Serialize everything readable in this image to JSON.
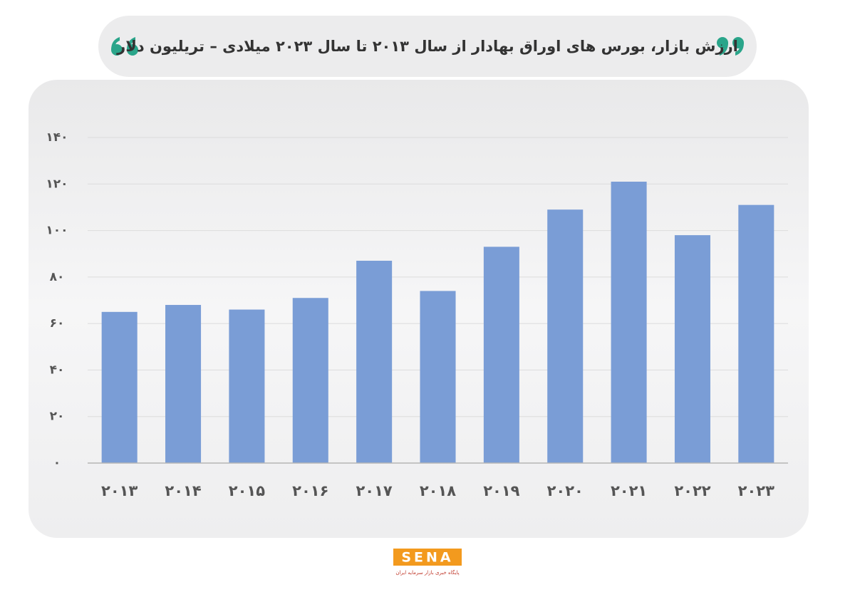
{
  "chart_data": {
    "type": "bar",
    "title": "ارزش بازار، بورس های اوراق بهادار از سال ۲۰۱۳ تا سال ۲۰۲۳ میلادی – تریلیون دلار",
    "categories": [
      "۲۰۱۳",
      "۲۰۱۴",
      "۲۰۱۵",
      "۲۰۱۶",
      "۲۰۱۷",
      "۲۰۱۸",
      "۲۰۱۹",
      "۲۰۲۰",
      "۲۰۲۱",
      "۲۰۲۲",
      "۲۰۲۳"
    ],
    "values": [
      65,
      68,
      66,
      71,
      87,
      74,
      93,
      109,
      121,
      98,
      111
    ],
    "color": "#7a9dd6",
    "ylim": [
      0,
      140
    ],
    "yticks": [
      {
        "value": 0,
        "label": "۰"
      },
      {
        "value": 20,
        "label": "۲۰"
      },
      {
        "value": 40,
        "label": "۴۰"
      },
      {
        "value": 60,
        "label": "۶۰"
      },
      {
        "value": 80,
        "label": "۸۰"
      },
      {
        "value": 100,
        "label": "۱۰۰"
      },
      {
        "value": 120,
        "label": "۱۲۰"
      },
      {
        "value": 140,
        "label": "۱۴۰"
      }
    ],
    "grid": true
  },
  "logo": {
    "name": "SENA",
    "tagline": "پایگاه خبری بازار سرمایه ایران"
  }
}
